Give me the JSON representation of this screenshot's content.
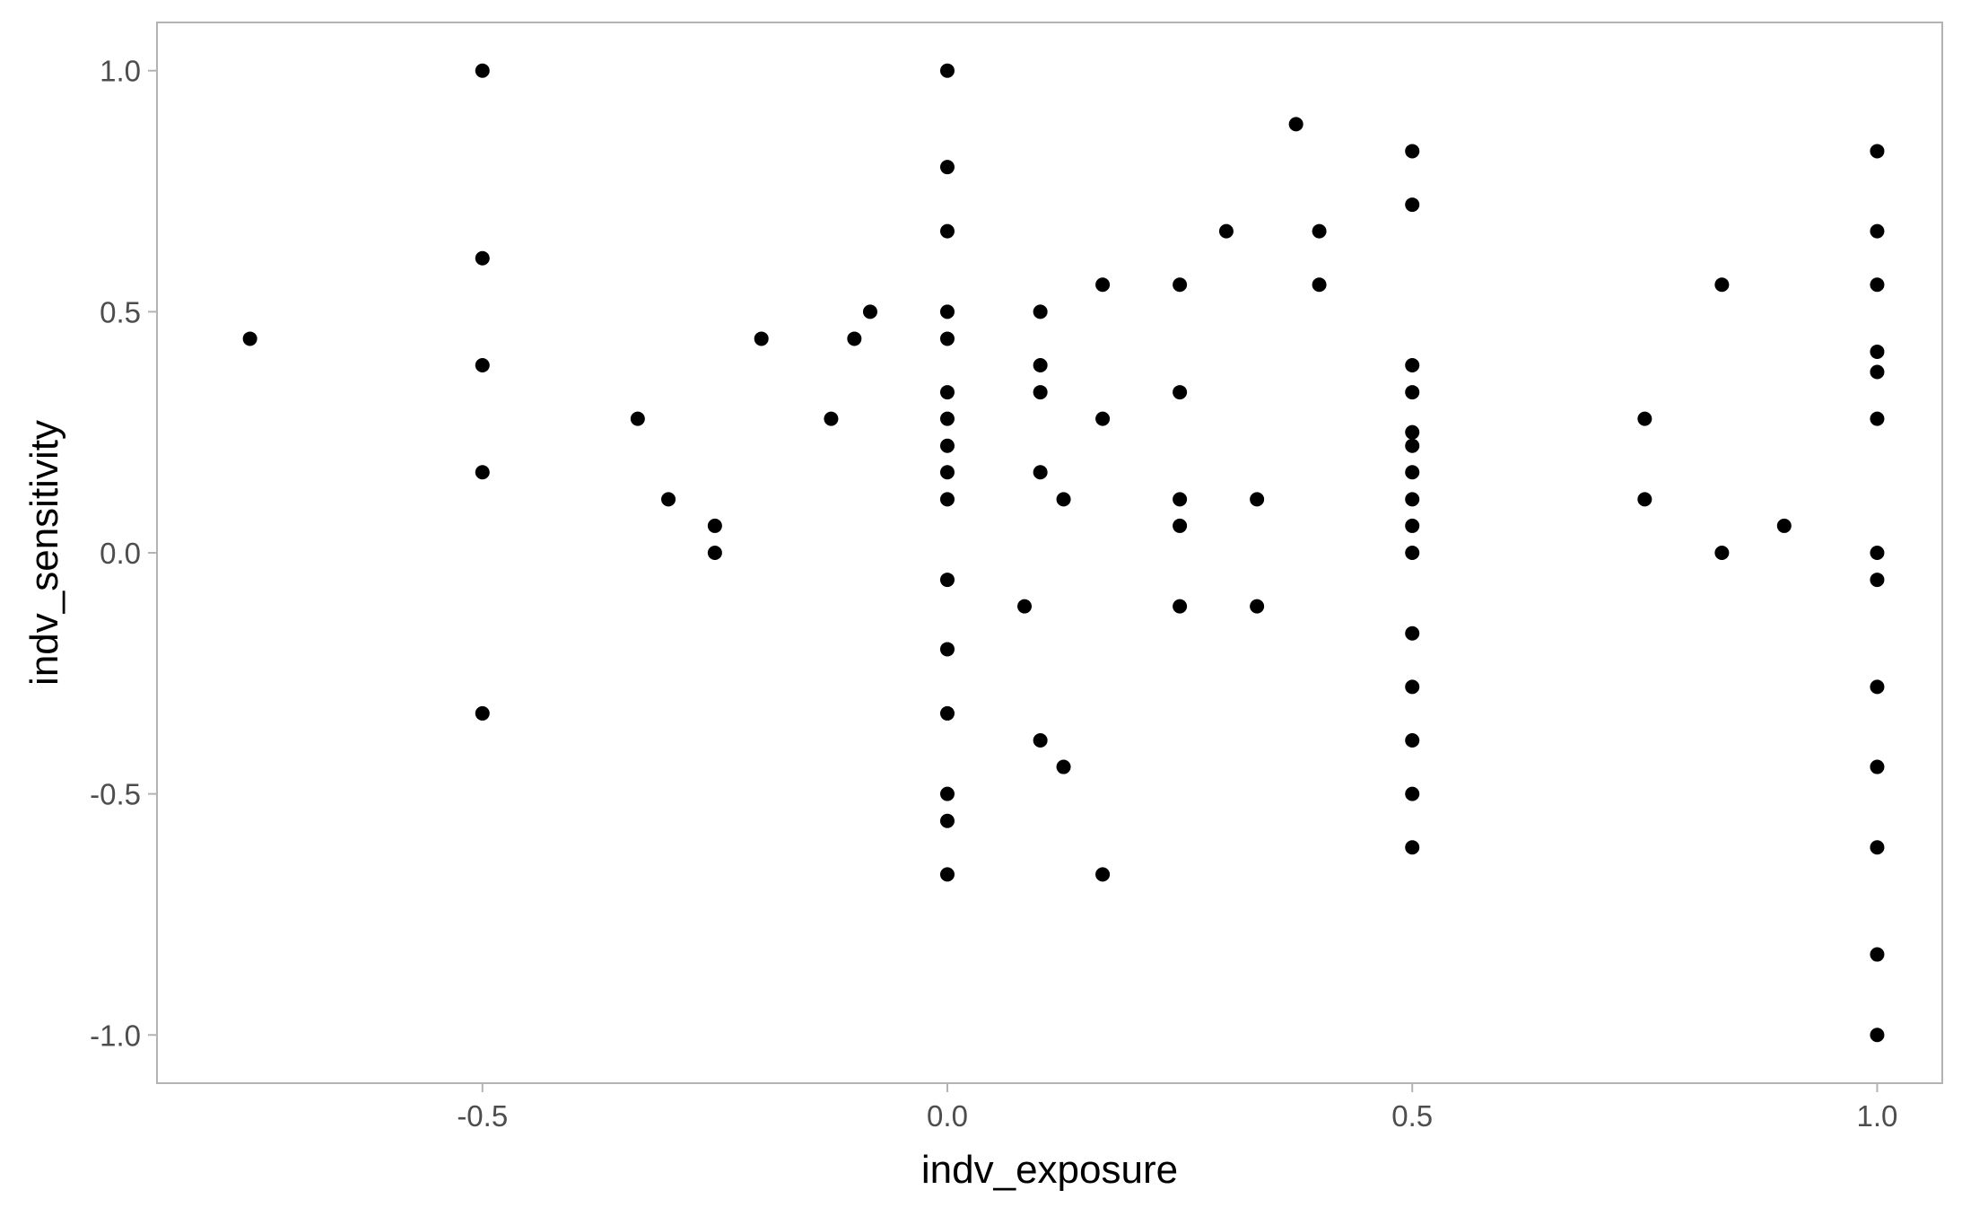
{
  "chart_data": {
    "type": "scatter",
    "title": "",
    "xlabel": "indv_exposure",
    "ylabel": "indv_sensitivity",
    "xlim": [
      -0.85,
      1.07
    ],
    "ylim": [
      -1.1,
      1.1
    ],
    "x_ticks": [
      -0.5,
      0.0,
      0.5,
      1.0
    ],
    "x_tick_labels": [
      "-0.5",
      "0.0",
      "0.5",
      "1.0"
    ],
    "y_ticks": [
      -1.0,
      -0.5,
      0.0,
      0.5,
      1.0
    ],
    "y_tick_labels": [
      "-1.0",
      "-0.5",
      "0.0",
      "0.5",
      "1.0"
    ],
    "grid": false,
    "legend": "none",
    "colors": {
      "point": "#000000",
      "panel_border": "#b3b3b3",
      "tick_label": "#4d4d4d",
      "axis_title": "#000000",
      "background": "#ffffff"
    },
    "points": [
      {
        "x": -0.75,
        "y": 0.444
      },
      {
        "x": -0.5,
        "y": 1.0
      },
      {
        "x": -0.5,
        "y": 0.611
      },
      {
        "x": -0.5,
        "y": 0.389
      },
      {
        "x": -0.5,
        "y": 0.167
      },
      {
        "x": -0.5,
        "y": -0.333
      },
      {
        "x": -0.333,
        "y": 0.278
      },
      {
        "x": -0.3,
        "y": 0.111
      },
      {
        "x": -0.25,
        "y": 0.056
      },
      {
        "x": -0.25,
        "y": 0.0
      },
      {
        "x": -0.2,
        "y": 0.444
      },
      {
        "x": -0.125,
        "y": 0.278
      },
      {
        "x": -0.1,
        "y": 0.444
      },
      {
        "x": -0.083,
        "y": 0.5
      },
      {
        "x": 0.0,
        "y": 1.0
      },
      {
        "x": 0.0,
        "y": 0.8
      },
      {
        "x": 0.0,
        "y": 0.667
      },
      {
        "x": 0.0,
        "y": 0.5
      },
      {
        "x": 0.0,
        "y": 0.444
      },
      {
        "x": 0.0,
        "y": 0.333
      },
      {
        "x": 0.0,
        "y": 0.278
      },
      {
        "x": 0.0,
        "y": 0.222
      },
      {
        "x": 0.0,
        "y": 0.167
      },
      {
        "x": 0.0,
        "y": 0.111
      },
      {
        "x": 0.0,
        "y": -0.056
      },
      {
        "x": 0.0,
        "y": -0.2
      },
      {
        "x": 0.0,
        "y": -0.333
      },
      {
        "x": 0.0,
        "y": -0.5
      },
      {
        "x": 0.0,
        "y": -0.556
      },
      {
        "x": 0.0,
        "y": -0.667
      },
      {
        "x": 0.083,
        "y": -0.111
      },
      {
        "x": 0.1,
        "y": 0.5
      },
      {
        "x": 0.1,
        "y": 0.389
      },
      {
        "x": 0.1,
        "y": 0.333
      },
      {
        "x": 0.1,
        "y": 0.167
      },
      {
        "x": 0.1,
        "y": -0.389
      },
      {
        "x": 0.125,
        "y": 0.111
      },
      {
        "x": 0.125,
        "y": -0.444
      },
      {
        "x": 0.167,
        "y": 0.556
      },
      {
        "x": 0.167,
        "y": 0.278
      },
      {
        "x": 0.167,
        "y": -0.667
      },
      {
        "x": 0.25,
        "y": 0.556
      },
      {
        "x": 0.25,
        "y": 0.333
      },
      {
        "x": 0.25,
        "y": 0.111
      },
      {
        "x": 0.25,
        "y": 0.056
      },
      {
        "x": 0.25,
        "y": -0.111
      },
      {
        "x": 0.3,
        "y": 0.667
      },
      {
        "x": 0.333,
        "y": 0.111
      },
      {
        "x": 0.333,
        "y": -0.111
      },
      {
        "x": 0.375,
        "y": 0.889
      },
      {
        "x": 0.4,
        "y": 0.667
      },
      {
        "x": 0.4,
        "y": 0.556
      },
      {
        "x": 0.5,
        "y": 0.833
      },
      {
        "x": 0.5,
        "y": 0.722
      },
      {
        "x": 0.5,
        "y": 0.389
      },
      {
        "x": 0.5,
        "y": 0.333
      },
      {
        "x": 0.5,
        "y": 0.25
      },
      {
        "x": 0.5,
        "y": 0.222
      },
      {
        "x": 0.5,
        "y": 0.167
      },
      {
        "x": 0.5,
        "y": 0.111
      },
      {
        "x": 0.5,
        "y": 0.056
      },
      {
        "x": 0.5,
        "y": 0.0
      },
      {
        "x": 0.5,
        "y": -0.167
      },
      {
        "x": 0.5,
        "y": -0.278
      },
      {
        "x": 0.5,
        "y": -0.389
      },
      {
        "x": 0.5,
        "y": -0.5
      },
      {
        "x": 0.5,
        "y": -0.611
      },
      {
        "x": 0.75,
        "y": 0.278
      },
      {
        "x": 0.75,
        "y": 0.111
      },
      {
        "x": 0.833,
        "y": 0.556
      },
      {
        "x": 0.833,
        "y": 0.0
      },
      {
        "x": 0.9,
        "y": 0.056
      },
      {
        "x": 1.0,
        "y": 0.833
      },
      {
        "x": 1.0,
        "y": 0.667
      },
      {
        "x": 1.0,
        "y": 0.556
      },
      {
        "x": 1.0,
        "y": 0.417
      },
      {
        "x": 1.0,
        "y": 0.375
      },
      {
        "x": 1.0,
        "y": 0.278
      },
      {
        "x": 1.0,
        "y": 0.0
      },
      {
        "x": 1.0,
        "y": -0.056
      },
      {
        "x": 1.0,
        "y": -0.278
      },
      {
        "x": 1.0,
        "y": -0.444
      },
      {
        "x": 1.0,
        "y": -0.611
      },
      {
        "x": 1.0,
        "y": -0.833
      },
      {
        "x": 1.0,
        "y": -1.0
      }
    ]
  }
}
